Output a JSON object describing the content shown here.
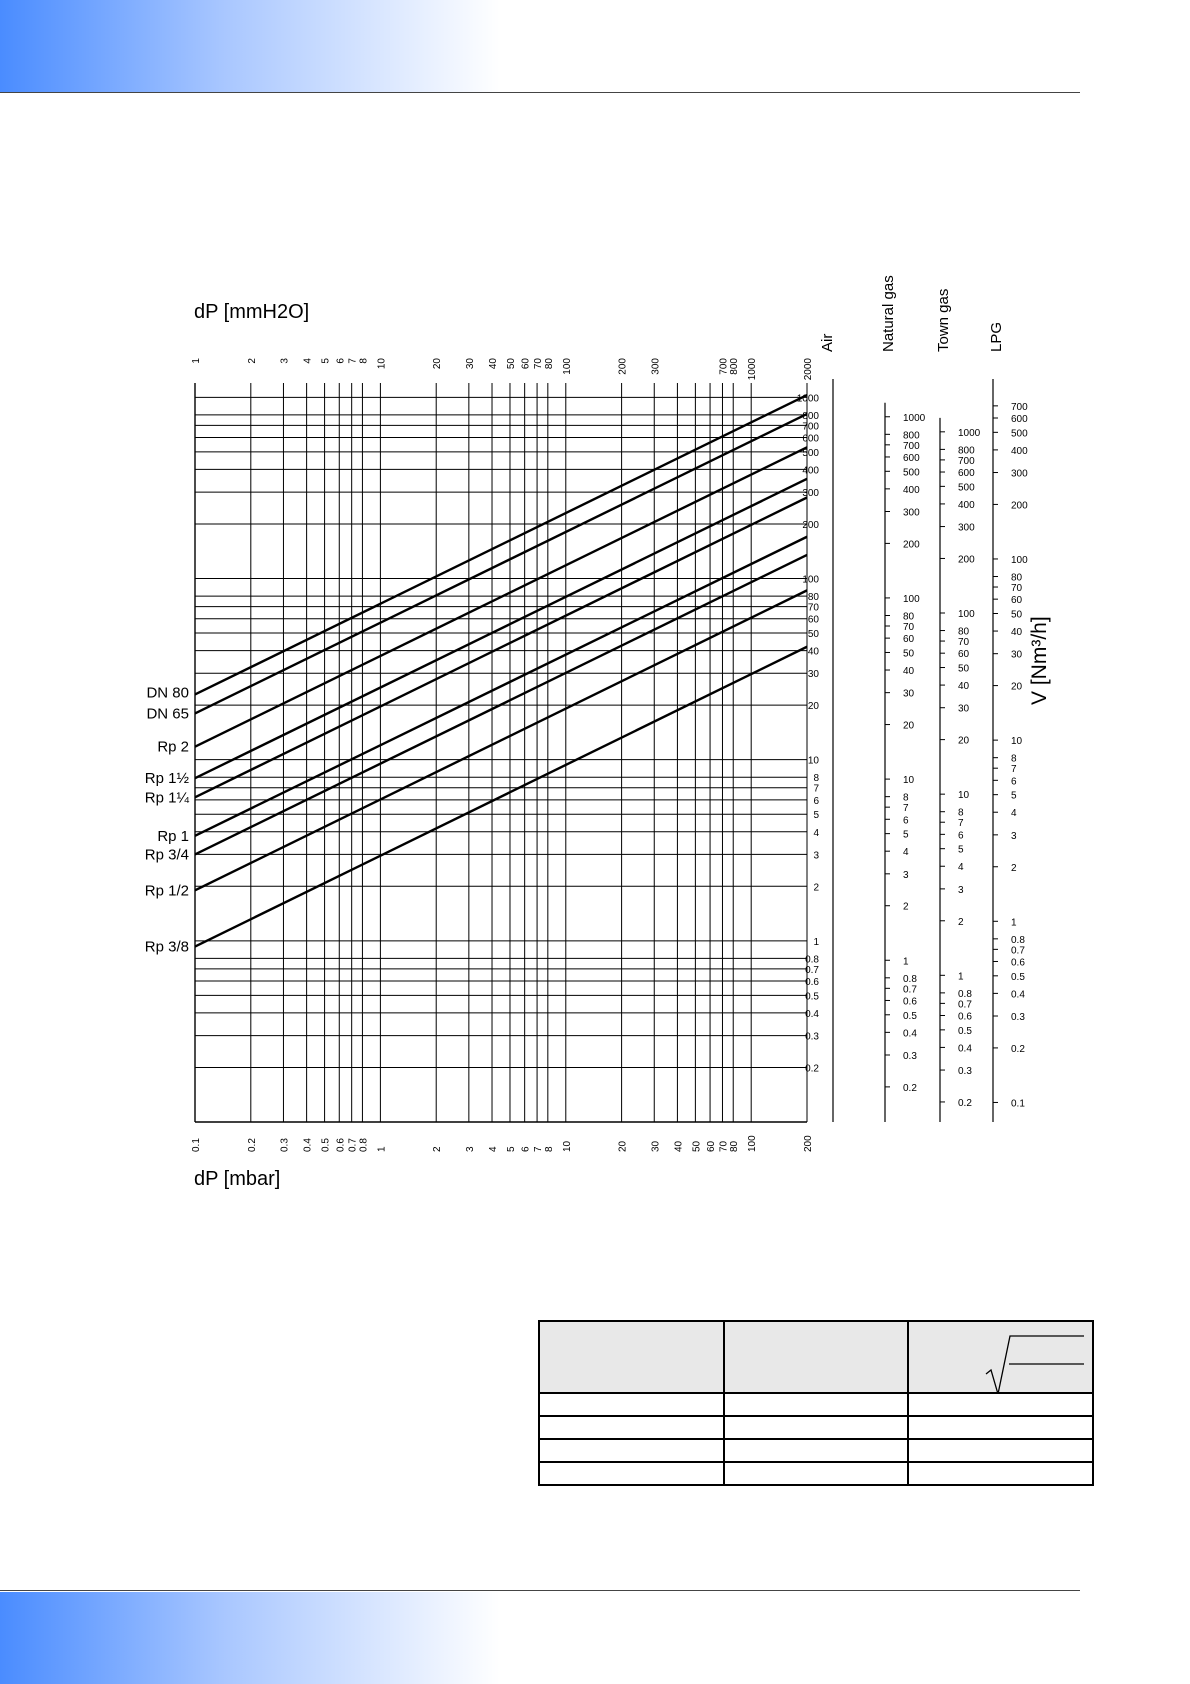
{
  "chart_data": {
    "type": "line",
    "title": "",
    "xlabel": "dP [mbar]",
    "x2label": "dP [mmH2O]",
    "ylabel": "V [Nm³/h]",
    "xscale": "log",
    "yscale": "log",
    "xlim": [
      0.1,
      200
    ],
    "x2lim": [
      1,
      2000
    ],
    "ylim": [
      0.1,
      1200
    ],
    "grid": true,
    "x_ticks": [
      "0.1",
      "0.2",
      "0.3",
      "0.4",
      "0.5",
      "0.6",
      "0.7",
      "0.8",
      "1",
      "2",
      "3",
      "4",
      "5",
      "6",
      "7",
      "8",
      "10",
      "20",
      "30",
      "40",
      "50",
      "60",
      "70",
      "80",
      "100",
      "200"
    ],
    "x_ticks_mmh2o": [
      "1",
      "2",
      "3",
      "4",
      "5",
      "6",
      "7",
      "8",
      "10",
      "20",
      "30",
      "40",
      "50",
      "60",
      "70",
      "80",
      "100",
      "200",
      "300",
      "700",
      "800",
      "1000",
      "2000"
    ],
    "scales": [
      {
        "name": "Air",
        "factor": 1.0,
        "ticks": [
          "1000",
          "800",
          "700",
          "600",
          "500",
          "400",
          "300",
          "200",
          "100",
          "80",
          "70",
          "60",
          "50",
          "40",
          "30",
          "20",
          "10",
          "8",
          "7",
          "6",
          "5",
          "4",
          "3",
          "2",
          "1",
          "0.8",
          "0.7",
          "0.6",
          "0.5",
          "0.4",
          "0.3",
          "0.2"
        ]
      },
      {
        "name": "Natural gas",
        "factor": 1.28,
        "ticks": [
          "1000",
          "800",
          "700",
          "600",
          "500",
          "400",
          "300",
          "200",
          "100",
          "80",
          "70",
          "60",
          "50",
          "40",
          "30",
          "20",
          "10",
          "8",
          "7",
          "6",
          "5",
          "4",
          "3",
          "2",
          "1",
          "0.8",
          "0.7",
          "0.6",
          "0.5",
          "0.4",
          "0.3",
          "0.2"
        ]
      },
      {
        "name": "Town gas",
        "factor": 1.55,
        "ticks": [
          "1000",
          "800",
          "700",
          "600",
          "500",
          "400",
          "300",
          "200",
          "100",
          "80",
          "70",
          "60",
          "50",
          "40",
          "30",
          "20",
          "10",
          "8",
          "7",
          "6",
          "5",
          "4",
          "3",
          "2",
          "1",
          "0.8",
          "0.7",
          "0.6",
          "0.5",
          "0.4",
          "0.3",
          "0.2"
        ]
      },
      {
        "name": "LPG",
        "factor": 0.78,
        "ticks": [
          "700",
          "600",
          "500",
          "400",
          "300",
          "200",
          "100",
          "80",
          "70",
          "60",
          "50",
          "40",
          "30",
          "20",
          "10",
          "8",
          "7",
          "6",
          "5",
          "4",
          "3",
          "2",
          "1",
          "0.8",
          "0.7",
          "0.6",
          "0.5",
          "0.4",
          "0.3",
          "0.2",
          "0.1"
        ]
      }
    ],
    "series": [
      {
        "name": "DN 80",
        "x": [
          0.1,
          200
        ],
        "y": [
          22.9,
          1030
        ]
      },
      {
        "name": "DN 65",
        "x": [
          0.1,
          200
        ],
        "y": [
          18.0,
          810
        ]
      },
      {
        "name": "Rp 2",
        "x": [
          0.1,
          200
        ],
        "y": [
          11.8,
          530
        ]
      },
      {
        "name": "Rp 1½",
        "x": [
          0.1,
          200
        ],
        "y": [
          7.9,
          355
        ]
      },
      {
        "name": "Rp 1¼",
        "x": [
          0.1,
          200
        ],
        "y": [
          6.2,
          280
        ]
      },
      {
        "name": "Rp 1",
        "x": [
          0.1,
          200
        ],
        "y": [
          3.8,
          170
        ]
      },
      {
        "name": "Rp 3/4",
        "x": [
          0.1,
          200
        ],
        "y": [
          3.0,
          135
        ]
      },
      {
        "name": "Rp 1/2",
        "x": [
          0.1,
          200
        ],
        "y": [
          1.9,
          86
        ]
      },
      {
        "name": "Rp 3/8",
        "x": [
          0.1,
          200
        ],
        "y": [
          0.93,
          42
        ]
      }
    ]
  },
  "table": {
    "columns": [
      "",
      "",
      ""
    ],
    "rows": [
      [
        "",
        "",
        ""
      ],
      [
        "",
        "",
        ""
      ],
      [
        "",
        "",
        ""
      ],
      [
        "",
        "",
        ""
      ]
    ]
  }
}
